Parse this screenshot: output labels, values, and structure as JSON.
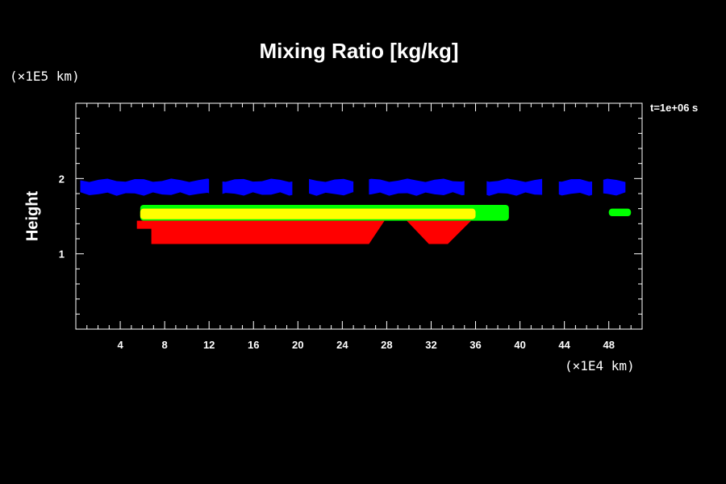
{
  "chart_data": {
    "type": "heatmap",
    "title": "Mixing Ratio [kg/kg]",
    "ylabel": "Height",
    "xlabel": "",
    "x_unit": "(×1E4 km)",
    "y_unit": "(×1E5 km)",
    "time_label": "t=1e+06 s",
    "xlim": [
      0,
      51
    ],
    "ylim": [
      0,
      3
    ],
    "x_ticks": [
      4,
      8,
      12,
      16,
      20,
      24,
      28,
      32,
      36,
      40,
      44,
      48
    ],
    "y_ticks": [
      1,
      2
    ],
    "colors": {
      "blue": "#0000ff",
      "green": "#00ff00",
      "yellow": "#ffff00",
      "red": "#ff0000"
    },
    "regions": [
      {
        "color": "blue",
        "x": [
          0.4,
          49.5
        ],
        "y": [
          1.77,
          2.0
        ]
      },
      {
        "color": "green",
        "x": [
          5.8,
          39.0
        ],
        "y": [
          1.44,
          1.65
        ]
      },
      {
        "color": "green",
        "x": [
          48.0,
          50.0
        ],
        "y": [
          1.5,
          1.6
        ]
      },
      {
        "color": "yellow",
        "x": [
          5.8,
          36.0
        ],
        "y": [
          1.46,
          1.6
        ]
      },
      {
        "color": "red",
        "x": [
          5.5,
          35.5
        ],
        "y": [
          1.13,
          1.44
        ]
      }
    ]
  }
}
